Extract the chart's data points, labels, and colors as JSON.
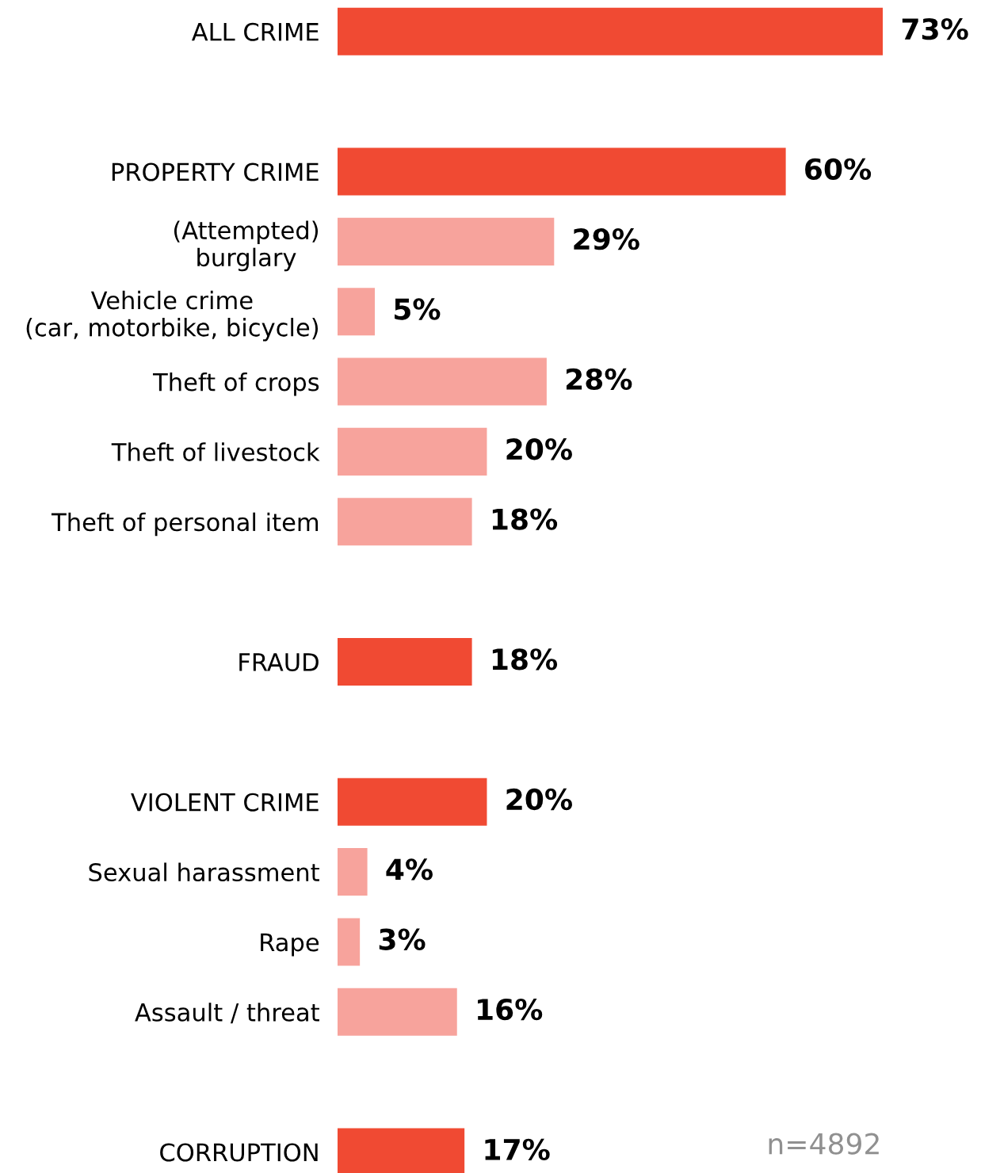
{
  "chart_data": {
    "type": "bar",
    "orientation": "horizontal",
    "categories": [
      "ALL CRIME",
      null,
      "PROPERTY CRIME",
      "(Attempted)\nburglary",
      "Vehicle crime\n(car, motorbike, bicycle)",
      "Theft of crops",
      "Theft of livestock",
      "Theft of personal item",
      null,
      "FRAUD",
      null,
      "VIOLENT CRIME",
      "Sexual harassment",
      "Rape",
      "Assault / threat",
      null,
      "CORRUPTION"
    ],
    "values": [
      73,
      null,
      60,
      29,
      5,
      28,
      20,
      18,
      null,
      18,
      null,
      20,
      4,
      3,
      16,
      null,
      17
    ],
    "colors": [
      "#f04a33",
      null,
      "#f04a33",
      "#f7a39c",
      "#f7a39c",
      "#f7a39c",
      "#f7a39c",
      "#f7a39c",
      null,
      "#f04a33",
      null,
      "#f04a33",
      "#f7a39c",
      "#f7a39c",
      "#f7a39c",
      null,
      "#f04a33"
    ],
    "value_labels": [
      "73%",
      null,
      "60%",
      "29%",
      "5%",
      "28%",
      "20%",
      "18%",
      null,
      "18%",
      null,
      "20%",
      "4%",
      "3%",
      "16%",
      null,
      "17%"
    ],
    "tick_labels": "y",
    "annotations": [
      "n=4892"
    ]
  }
}
